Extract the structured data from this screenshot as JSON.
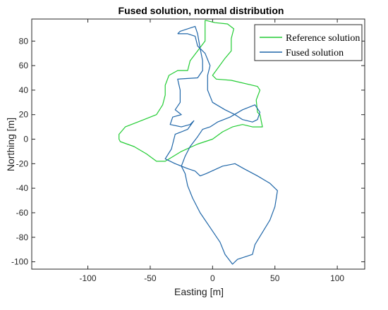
{
  "chart_data": {
    "type": "line",
    "title": "Fused solution, normal distribution",
    "xlabel": "Easting [m]",
    "ylabel": "Northing [m]",
    "xlim": [
      -145,
      122
    ],
    "ylim": [
      -106,
      98
    ],
    "xticks": [
      -100,
      -50,
      0,
      50,
      100
    ],
    "yticks": [
      -100,
      -80,
      -60,
      -40,
      -20,
      0,
      20,
      40,
      60,
      80
    ],
    "grid": false,
    "legend_position": "top-right",
    "series": [
      {
        "name": "Reference solution",
        "color": "#22cc33",
        "points": [
          [
            -6,
            97
          ],
          [
            -6,
            80
          ],
          [
            -18,
            64
          ],
          [
            -20,
            56
          ],
          [
            -28,
            56
          ],
          [
            -35,
            52
          ],
          [
            -38,
            44
          ],
          [
            -38,
            36
          ],
          [
            -40,
            28
          ],
          [
            -45,
            20
          ],
          [
            -60,
            14
          ],
          [
            -70,
            10
          ],
          [
            -75,
            4
          ],
          [
            -75,
            0
          ],
          [
            -74,
            -2
          ],
          [
            -63,
            -6
          ],
          [
            -53,
            -12
          ],
          [
            -45,
            -18
          ],
          [
            -38,
            -18
          ],
          [
            -25,
            -10
          ],
          [
            -12,
            -4
          ],
          [
            0,
            0
          ],
          [
            8,
            6
          ],
          [
            16,
            10
          ],
          [
            24,
            12
          ],
          [
            32,
            10
          ],
          [
            40,
            10
          ],
          [
            38,
            20
          ],
          [
            36,
            22
          ],
          [
            35,
            32
          ],
          [
            38,
            40
          ],
          [
            36,
            43
          ],
          [
            15,
            48
          ],
          [
            3,
            49
          ],
          [
            0,
            52
          ],
          [
            10,
            66
          ],
          [
            15,
            72
          ],
          [
            15,
            82
          ],
          [
            17,
            90
          ],
          [
            12,
            94
          ],
          [
            2,
            95
          ],
          [
            -6,
            97
          ]
        ]
      },
      {
        "name": "Fused solution",
        "color": "#1f66a8",
        "points": [
          [
            -28,
            86
          ],
          [
            -26,
            88
          ],
          [
            -14,
            92
          ],
          [
            -12,
            86
          ],
          [
            -10,
            74
          ],
          [
            -8,
            64
          ],
          [
            -8,
            56
          ],
          [
            -12,
            50
          ],
          [
            -28,
            49
          ],
          [
            -26,
            40
          ],
          [
            -26,
            30
          ],
          [
            -30,
            24
          ],
          [
            -25,
            20
          ],
          [
            -32,
            18
          ],
          [
            -34,
            12
          ],
          [
            -25,
            10
          ],
          [
            -18,
            12
          ],
          [
            -15,
            15
          ],
          [
            -20,
            8
          ],
          [
            -30,
            4
          ],
          [
            -33,
            -8
          ],
          [
            -38,
            -16
          ],
          [
            -30,
            -20
          ],
          [
            -20,
            -24
          ],
          [
            -14,
            -26
          ],
          [
            -10,
            -30
          ],
          [
            -5,
            -28
          ],
          [
            8,
            -22
          ],
          [
            18,
            -20
          ],
          [
            25,
            -24
          ],
          [
            36,
            -30
          ],
          [
            46,
            -36
          ],
          [
            52,
            -42
          ],
          [
            50,
            -55
          ],
          [
            46,
            -66
          ],
          [
            40,
            -76
          ],
          [
            34,
            -86
          ],
          [
            32,
            -94
          ],
          [
            26,
            -96
          ],
          [
            20,
            -98
          ],
          [
            16,
            -102
          ],
          [
            10,
            -94
          ],
          [
            6,
            -84
          ],
          [
            -2,
            -72
          ],
          [
            -10,
            -60
          ],
          [
            -16,
            -48
          ],
          [
            -20,
            -38
          ],
          [
            -22,
            -28
          ],
          [
            -25,
            -22
          ],
          [
            -22,
            -14
          ],
          [
            -18,
            -6
          ],
          [
            -12,
            2
          ],
          [
            -8,
            8
          ],
          [
            -2,
            10
          ],
          [
            4,
            14
          ],
          [
            14,
            18
          ],
          [
            24,
            24
          ],
          [
            34,
            28
          ],
          [
            38,
            22
          ],
          [
            36,
            16
          ],
          [
            32,
            14
          ],
          [
            24,
            16
          ],
          [
            18,
            20
          ],
          [
            10,
            24
          ],
          [
            0,
            30
          ],
          [
            -4,
            40
          ],
          [
            -4,
            52
          ],
          [
            -2,
            60
          ],
          [
            -6,
            70
          ],
          [
            -12,
            76
          ],
          [
            -14,
            84
          ],
          [
            -20,
            86
          ],
          [
            -28,
            86
          ]
        ]
      }
    ]
  }
}
